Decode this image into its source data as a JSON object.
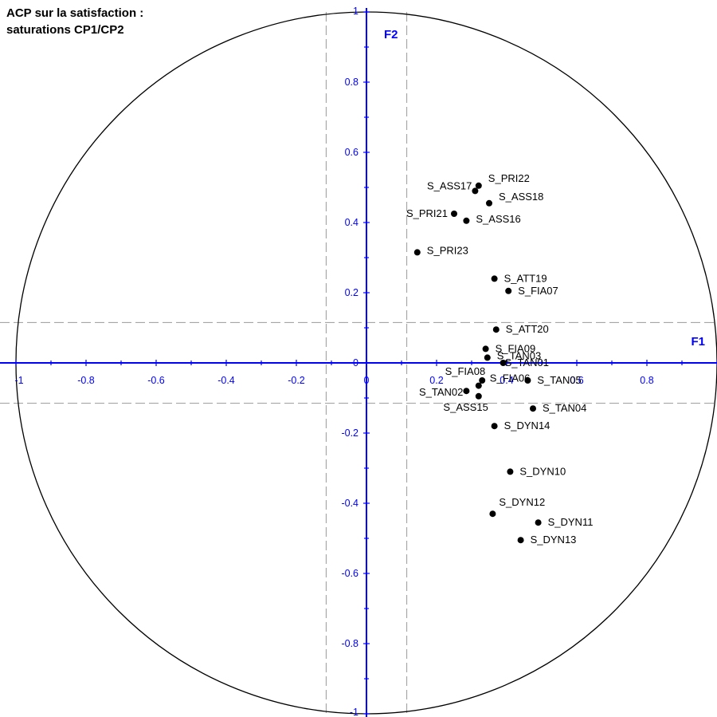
{
  "chart_data": {
    "type": "scatter",
    "title": [
      "ACP sur la satisfaction :",
      "saturations CP1/CP2"
    ],
    "xlabel": "F1",
    "ylabel": "F2",
    "xlim": [
      -1,
      1
    ],
    "ylim": [
      -1,
      1
    ],
    "x_ticks": [
      -1,
      -0.8,
      -0.6,
      -0.4,
      -0.2,
      0,
      0.2,
      0.4,
      0.6,
      0.8
    ],
    "x_tick_labels": [
      "-1",
      "-0.8",
      "-0.6",
      "-0.4",
      "-0.2",
      "0",
      "0.2",
      "0.4",
      "0.6",
      "0.8"
    ],
    "y_ticks": [
      -1,
      -0.8,
      -0.6,
      -0.4,
      -0.2,
      0,
      0.2,
      0.4,
      0.6,
      0.8,
      1
    ],
    "y_tick_labels": [
      "-1",
      "-0.8",
      "-0.6",
      "-0.4",
      "-0.2",
      "0",
      "0.2",
      "0.4",
      "0.6",
      "0.8",
      "1"
    ],
    "unit_circle": true,
    "reference_lines": {
      "x": [
        -0.115,
        0.115
      ],
      "y": [
        -0.115,
        0.115
      ]
    },
    "colors": {
      "axis": "#0000ff",
      "points": "#000000",
      "circle": "#000000",
      "reference": "#9a9a9a"
    },
    "points": [
      {
        "label": "S_PRI22",
        "x": 0.32,
        "y": 0.505
      },
      {
        "label": "S_ASS17",
        "x": 0.31,
        "y": 0.49
      },
      {
        "label": "S_ASS18",
        "x": 0.35,
        "y": 0.455
      },
      {
        "label": "S_PRI21",
        "x": 0.25,
        "y": 0.425
      },
      {
        "label": "S_ASS16",
        "x": 0.285,
        "y": 0.405
      },
      {
        "label": "S_PRI23",
        "x": 0.145,
        "y": 0.315
      },
      {
        "label": "S_ATT19",
        "x": 0.365,
        "y": 0.24
      },
      {
        "label": "S_FIA07",
        "x": 0.405,
        "y": 0.205
      },
      {
        "label": "S_ATT20",
        "x": 0.37,
        "y": 0.095
      },
      {
        "label": "S_FIA09",
        "x": 0.34,
        "y": 0.04
      },
      {
        "label": "S_TAN03",
        "x": 0.345,
        "y": 0.015
      },
      {
        "label": "S_TAN01",
        "x": 0.39,
        "y": 0.0
      },
      {
        "label": "S_FIA08",
        "x": 0.33,
        "y": -0.05
      },
      {
        "label": "S_FIA06",
        "x": 0.32,
        "y": -0.065
      },
      {
        "label": "S_TAN05",
        "x": 0.46,
        "y": -0.05
      },
      {
        "label": "S_TAN02",
        "x": 0.285,
        "y": -0.08
      },
      {
        "label": "S_ASS15",
        "x": 0.32,
        "y": -0.095
      },
      {
        "label": "S_TAN04",
        "x": 0.475,
        "y": -0.13
      },
      {
        "label": "S_DYN14",
        "x": 0.365,
        "y": -0.18
      },
      {
        "label": "S_DYN10",
        "x": 0.41,
        "y": -0.31
      },
      {
        "label": "S_DYN12",
        "x": 0.36,
        "y": -0.43
      },
      {
        "label": "S_DYN11",
        "x": 0.49,
        "y": -0.455
      },
      {
        "label": "S_DYN13",
        "x": 0.44,
        "y": -0.505
      }
    ]
  }
}
